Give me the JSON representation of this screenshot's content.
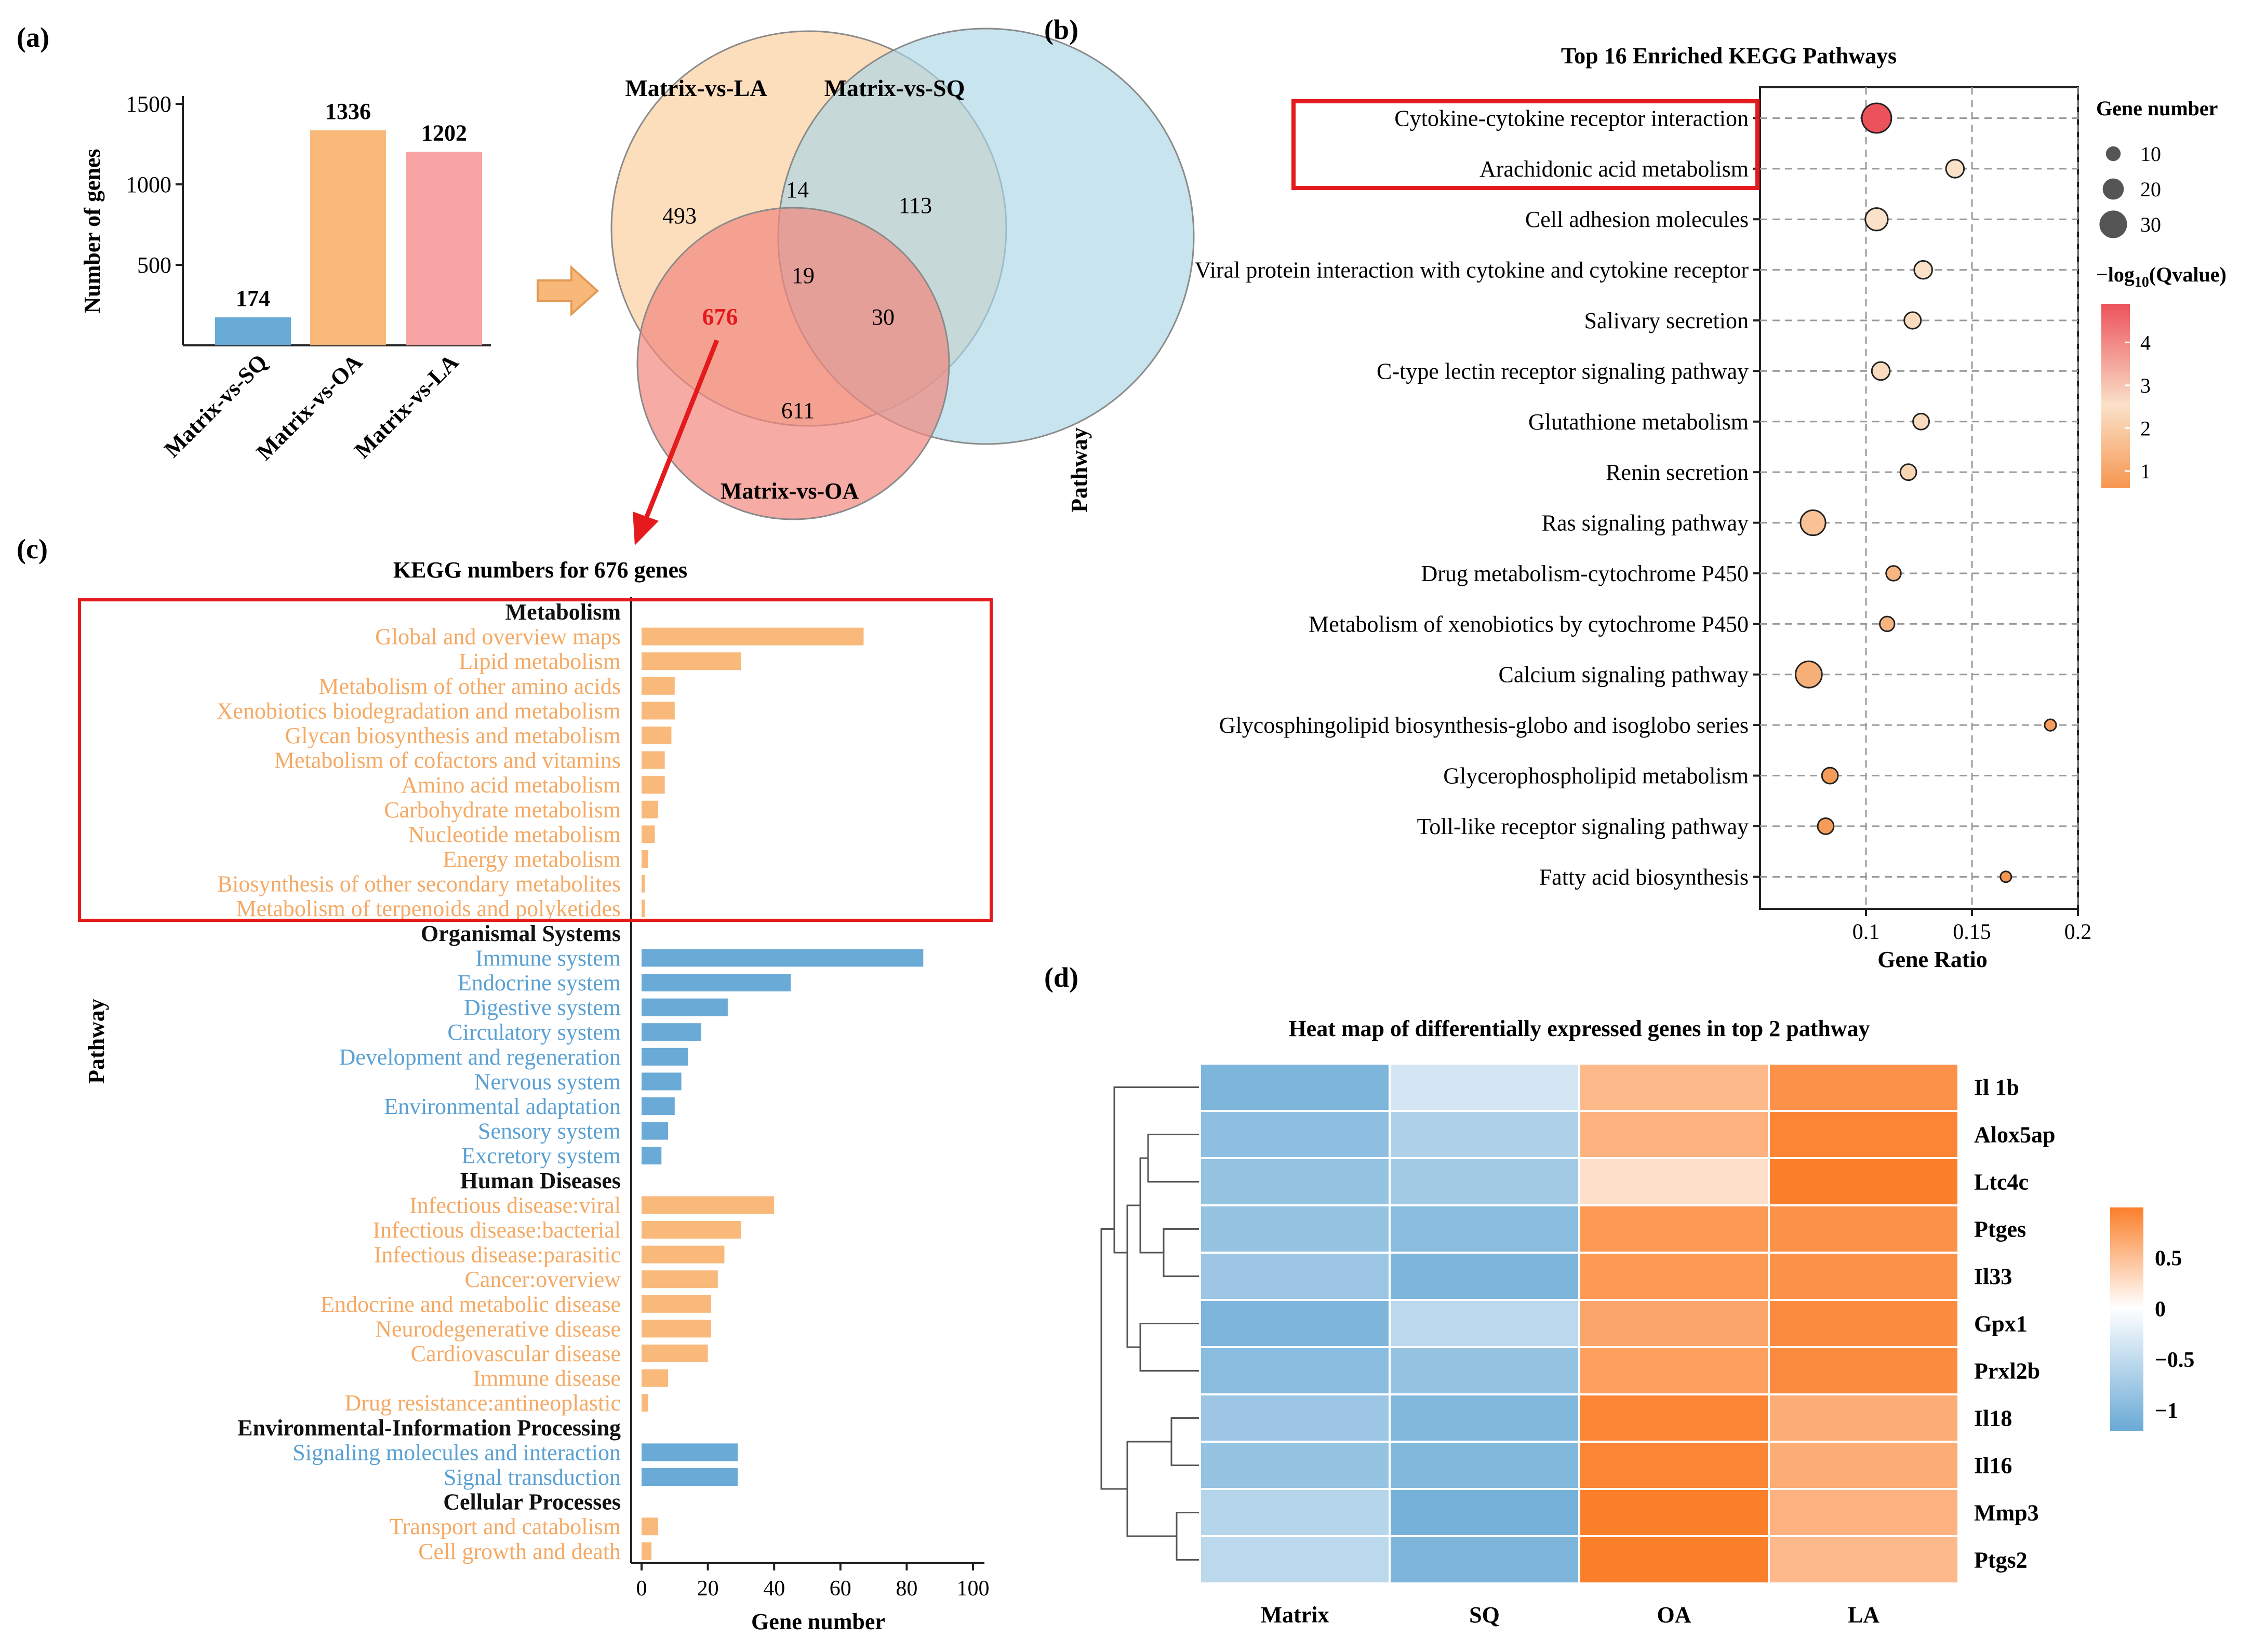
{
  "colors": {
    "blue": "#6aaad6",
    "orange": "#f9b97a",
    "pink": "#f8a3a3",
    "venn_la": "#fbd7b0",
    "venn_sq": "#a9d6e6",
    "venn_oa": "#f2877f",
    "heat_low": "#6aaad6",
    "heat_mid": "#ffffff",
    "heat_high": "#fb7f2a",
    "highlight": "#e41a1c"
  },
  "panel_a": {
    "label": "(a)",
    "ylabel": "Number of genes",
    "yticks": [
      "500",
      "1000",
      "1500"
    ],
    "arrow_icon": "right-arrow-icon"
  },
  "venn": {
    "labels": {
      "la": "Matrix-vs-LA",
      "sq": "Matrix-vs-SQ",
      "oa": "Matrix-vs-OA"
    },
    "counts": {
      "la_only": "493",
      "la_sq": "14",
      "sq_only": "113",
      "all": "19",
      "la_oa": "676",
      "sq_oa": "30",
      "oa_only": "611"
    }
  },
  "panel_b": {
    "label": "(b)",
    "xlabel": "Gene Ratio",
    "ylabel": "Pathway",
    "legend_size_title": "Gene number",
    "legend_size_labels": [
      "10",
      "20",
      "30"
    ],
    "legend_color_title": "−log",
    "legend_color_sub": "10",
    "legend_color_tail": "(Qvalue)",
    "legend_color_labels": [
      "4",
      "3",
      "2",
      "1"
    ]
  },
  "panel_c": {
    "label": "(c)",
    "ylabel": "Pathway"
  },
  "panel_d": {
    "label": "(d)",
    "title": "Heat map of differentially expressed genes in top 2 pathway",
    "legend_labels": [
      "0.5",
      "0",
      "−0.5",
      "−1"
    ]
  },
  "chart_data": [
    {
      "type": "bar",
      "id": "a",
      "categories": [
        "Matrix-vs-SQ",
        "Matrix-vs-OA",
        "Matrix-vs-LA"
      ],
      "values": [
        174,
        1336,
        1202
      ],
      "value_labels": [
        "174",
        "1336",
        "1202"
      ],
      "ylabel": "Number of genes",
      "ylim": [
        0,
        1500
      ]
    },
    {
      "type": "scatter",
      "id": "b",
      "title": "Top 16 Enriched KEGG Pathways",
      "xlabel": "Gene Ratio",
      "ylabel": "Pathway",
      "xlim": [
        0.05,
        0.2
      ],
      "xticks": [
        "0.1",
        "0.15",
        "0.2"
      ],
      "points": [
        {
          "pathway": "Cytokine-cytokine receptor interaction",
          "ratio": 0.105,
          "genes": 33,
          "q": 4.6
        },
        {
          "pathway": "Arachidonic acid metabolism",
          "ratio": 0.142,
          "genes": 15,
          "q": 2.0
        },
        {
          "pathway": "Cell adhesion molecules",
          "ratio": 0.105,
          "genes": 22,
          "q": 2.0
        },
        {
          "pathway": "Viral protein interaction with cytokine and cytokine receptor",
          "ratio": 0.127,
          "genes": 15,
          "q": 2.0
        },
        {
          "pathway": "Salivary secretion",
          "ratio": 0.122,
          "genes": 13,
          "q": 1.9
        },
        {
          "pathway": "C-type lectin receptor signaling pathway",
          "ratio": 0.107,
          "genes": 15,
          "q": 1.9
        },
        {
          "pathway": "Glutathione metabolism",
          "ratio": 0.126,
          "genes": 12,
          "q": 1.9
        },
        {
          "pathway": "Renin secretion",
          "ratio": 0.12,
          "genes": 12,
          "q": 1.8
        },
        {
          "pathway": "Ras signaling pathway",
          "ratio": 0.075,
          "genes": 26,
          "q": 1.5
        },
        {
          "pathway": "Drug metabolism-cytochrome P450",
          "ratio": 0.113,
          "genes": 10,
          "q": 1.3
        },
        {
          "pathway": "Metabolism of xenobiotics by cytochrome P450",
          "ratio": 0.11,
          "genes": 10,
          "q": 1.3
        },
        {
          "pathway": "Calcium signaling pathway",
          "ratio": 0.073,
          "genes": 28,
          "q": 1.2
        },
        {
          "pathway": "Glycosphingolipid biosynthesis-globo and isoglobo series",
          "ratio": 0.187,
          "genes": 5,
          "q": 0.9
        },
        {
          "pathway": "Glycerophospholipid metabolism",
          "ratio": 0.083,
          "genes": 12,
          "q": 0.9
        },
        {
          "pathway": "Toll-like receptor signaling pathway",
          "ratio": 0.081,
          "genes": 12,
          "q": 0.9
        },
        {
          "pathway": "Fatty acid biosynthesis",
          "ratio": 0.166,
          "genes": 4,
          "q": 0.8
        }
      ]
    },
    {
      "type": "bar",
      "id": "c",
      "title": "KEGG numbers for 676 genes",
      "xlabel": "Gene number",
      "xlim": [
        0,
        100
      ],
      "xticks": [
        "0",
        "20",
        "40",
        "60",
        "80",
        "100"
      ],
      "groups": [
        {
          "name": "Metabolism",
          "color": "orange",
          "items": [
            {
              "label": "Global and overview maps",
              "value": 67
            },
            {
              "label": "Lipid metabolism",
              "value": 30
            },
            {
              "label": "Metabolism of other amino acids",
              "value": 10
            },
            {
              "label": "Xenobiotics biodegradation and metabolism",
              "value": 10
            },
            {
              "label": "Glycan biosynthesis and metabolism",
              "value": 9
            },
            {
              "label": "Metabolism of cofactors and vitamins",
              "value": 7
            },
            {
              "label": "Amino acid metabolism",
              "value": 7
            },
            {
              "label": "Carbohydrate metabolism",
              "value": 5
            },
            {
              "label": "Nucleotide metabolism",
              "value": 4
            },
            {
              "label": "Energy metabolism",
              "value": 2
            },
            {
              "label": "Biosynthesis of other secondary metabolites",
              "value": 1
            },
            {
              "label": "Metabolism of terpenoids and polyketides",
              "value": 1
            }
          ]
        },
        {
          "name": "Organismal Systems",
          "color": "blue",
          "items": [
            {
              "label": "Immune system",
              "value": 85
            },
            {
              "label": "Endocrine system",
              "value": 45
            },
            {
              "label": "Digestive system",
              "value": 26
            },
            {
              "label": "Circulatory system",
              "value": 18
            },
            {
              "label": "Development and regeneration",
              "value": 14
            },
            {
              "label": "Nervous system",
              "value": 12
            },
            {
              "label": "Environmental adaptation",
              "value": 10
            },
            {
              "label": "Sensory system",
              "value": 8
            },
            {
              "label": "Excretory system",
              "value": 6
            }
          ]
        },
        {
          "name": "Human Diseases",
          "color": "orange",
          "items": [
            {
              "label": "Infectious disease:viral",
              "value": 40
            },
            {
              "label": "Infectious disease:bacterial",
              "value": 30
            },
            {
              "label": "Infectious disease:parasitic",
              "value": 25
            },
            {
              "label": "Cancer:overview",
              "value": 23
            },
            {
              "label": "Endocrine and metabolic disease",
              "value": 21
            },
            {
              "label": "Neurodegenerative disease",
              "value": 21
            },
            {
              "label": "Cardiovascular disease",
              "value": 20
            },
            {
              "label": "Immune disease",
              "value": 8
            },
            {
              "label": "Drug resistance:antineoplastic",
              "value": 2
            }
          ]
        },
        {
          "name": "Environmental-Information Processing",
          "color": "blue",
          "items": [
            {
              "label": "Signaling molecules and interaction",
              "value": 29
            },
            {
              "label": "Signal transduction",
              "value": 29
            }
          ]
        },
        {
          "name": "Cellular Processes",
          "color": "orange",
          "items": [
            {
              "label": "Transport and catabolism",
              "value": 5
            },
            {
              "label": "Cell growth and death",
              "value": 3
            }
          ]
        }
      ]
    },
    {
      "type": "heatmap",
      "id": "d",
      "title": "Heat map of differentially expressed genes in top 2 pathway",
      "columns": [
        "Matrix",
        "SQ",
        "OA",
        "LA"
      ],
      "rows": [
        "Il 1b",
        "Alox5ap",
        "Ltc4c",
        "Ptges",
        "Il33",
        "Gpx1",
        "Prxl2b",
        "Il18",
        "Il16",
        "Mmp3",
        "Ptgs2"
      ],
      "values": [
        [
          -1.05,
          -0.35,
          0.55,
          0.85
        ],
        [
          -0.9,
          -0.65,
          0.6,
          0.95
        ],
        [
          -0.85,
          -0.75,
          0.25,
          1.2
        ],
        [
          -0.85,
          -0.95,
          0.8,
          0.85
        ],
        [
          -0.8,
          -1.05,
          0.8,
          0.85
        ],
        [
          -1.05,
          -0.55,
          0.7,
          0.9
        ],
        [
          -0.95,
          -0.85,
          0.75,
          0.9
        ],
        [
          -0.8,
          -1.0,
          0.95,
          0.65
        ],
        [
          -0.85,
          -1.0,
          0.95,
          0.65
        ],
        [
          -0.6,
          -1.1,
          1.0,
          0.6
        ],
        [
          -0.55,
          -1.05,
          1.0,
          0.55
        ]
      ],
      "scale": [
        -1.2,
        1.0
      ]
    }
  ]
}
